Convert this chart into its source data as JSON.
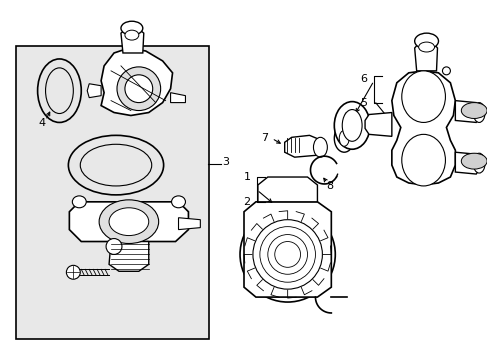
{
  "background_color": "#ffffff",
  "line_color": "#000000",
  "box_fill": "#e8e8e8",
  "fig_width": 4.89,
  "fig_height": 3.6,
  "dpi": 100,
  "font_size": 8
}
